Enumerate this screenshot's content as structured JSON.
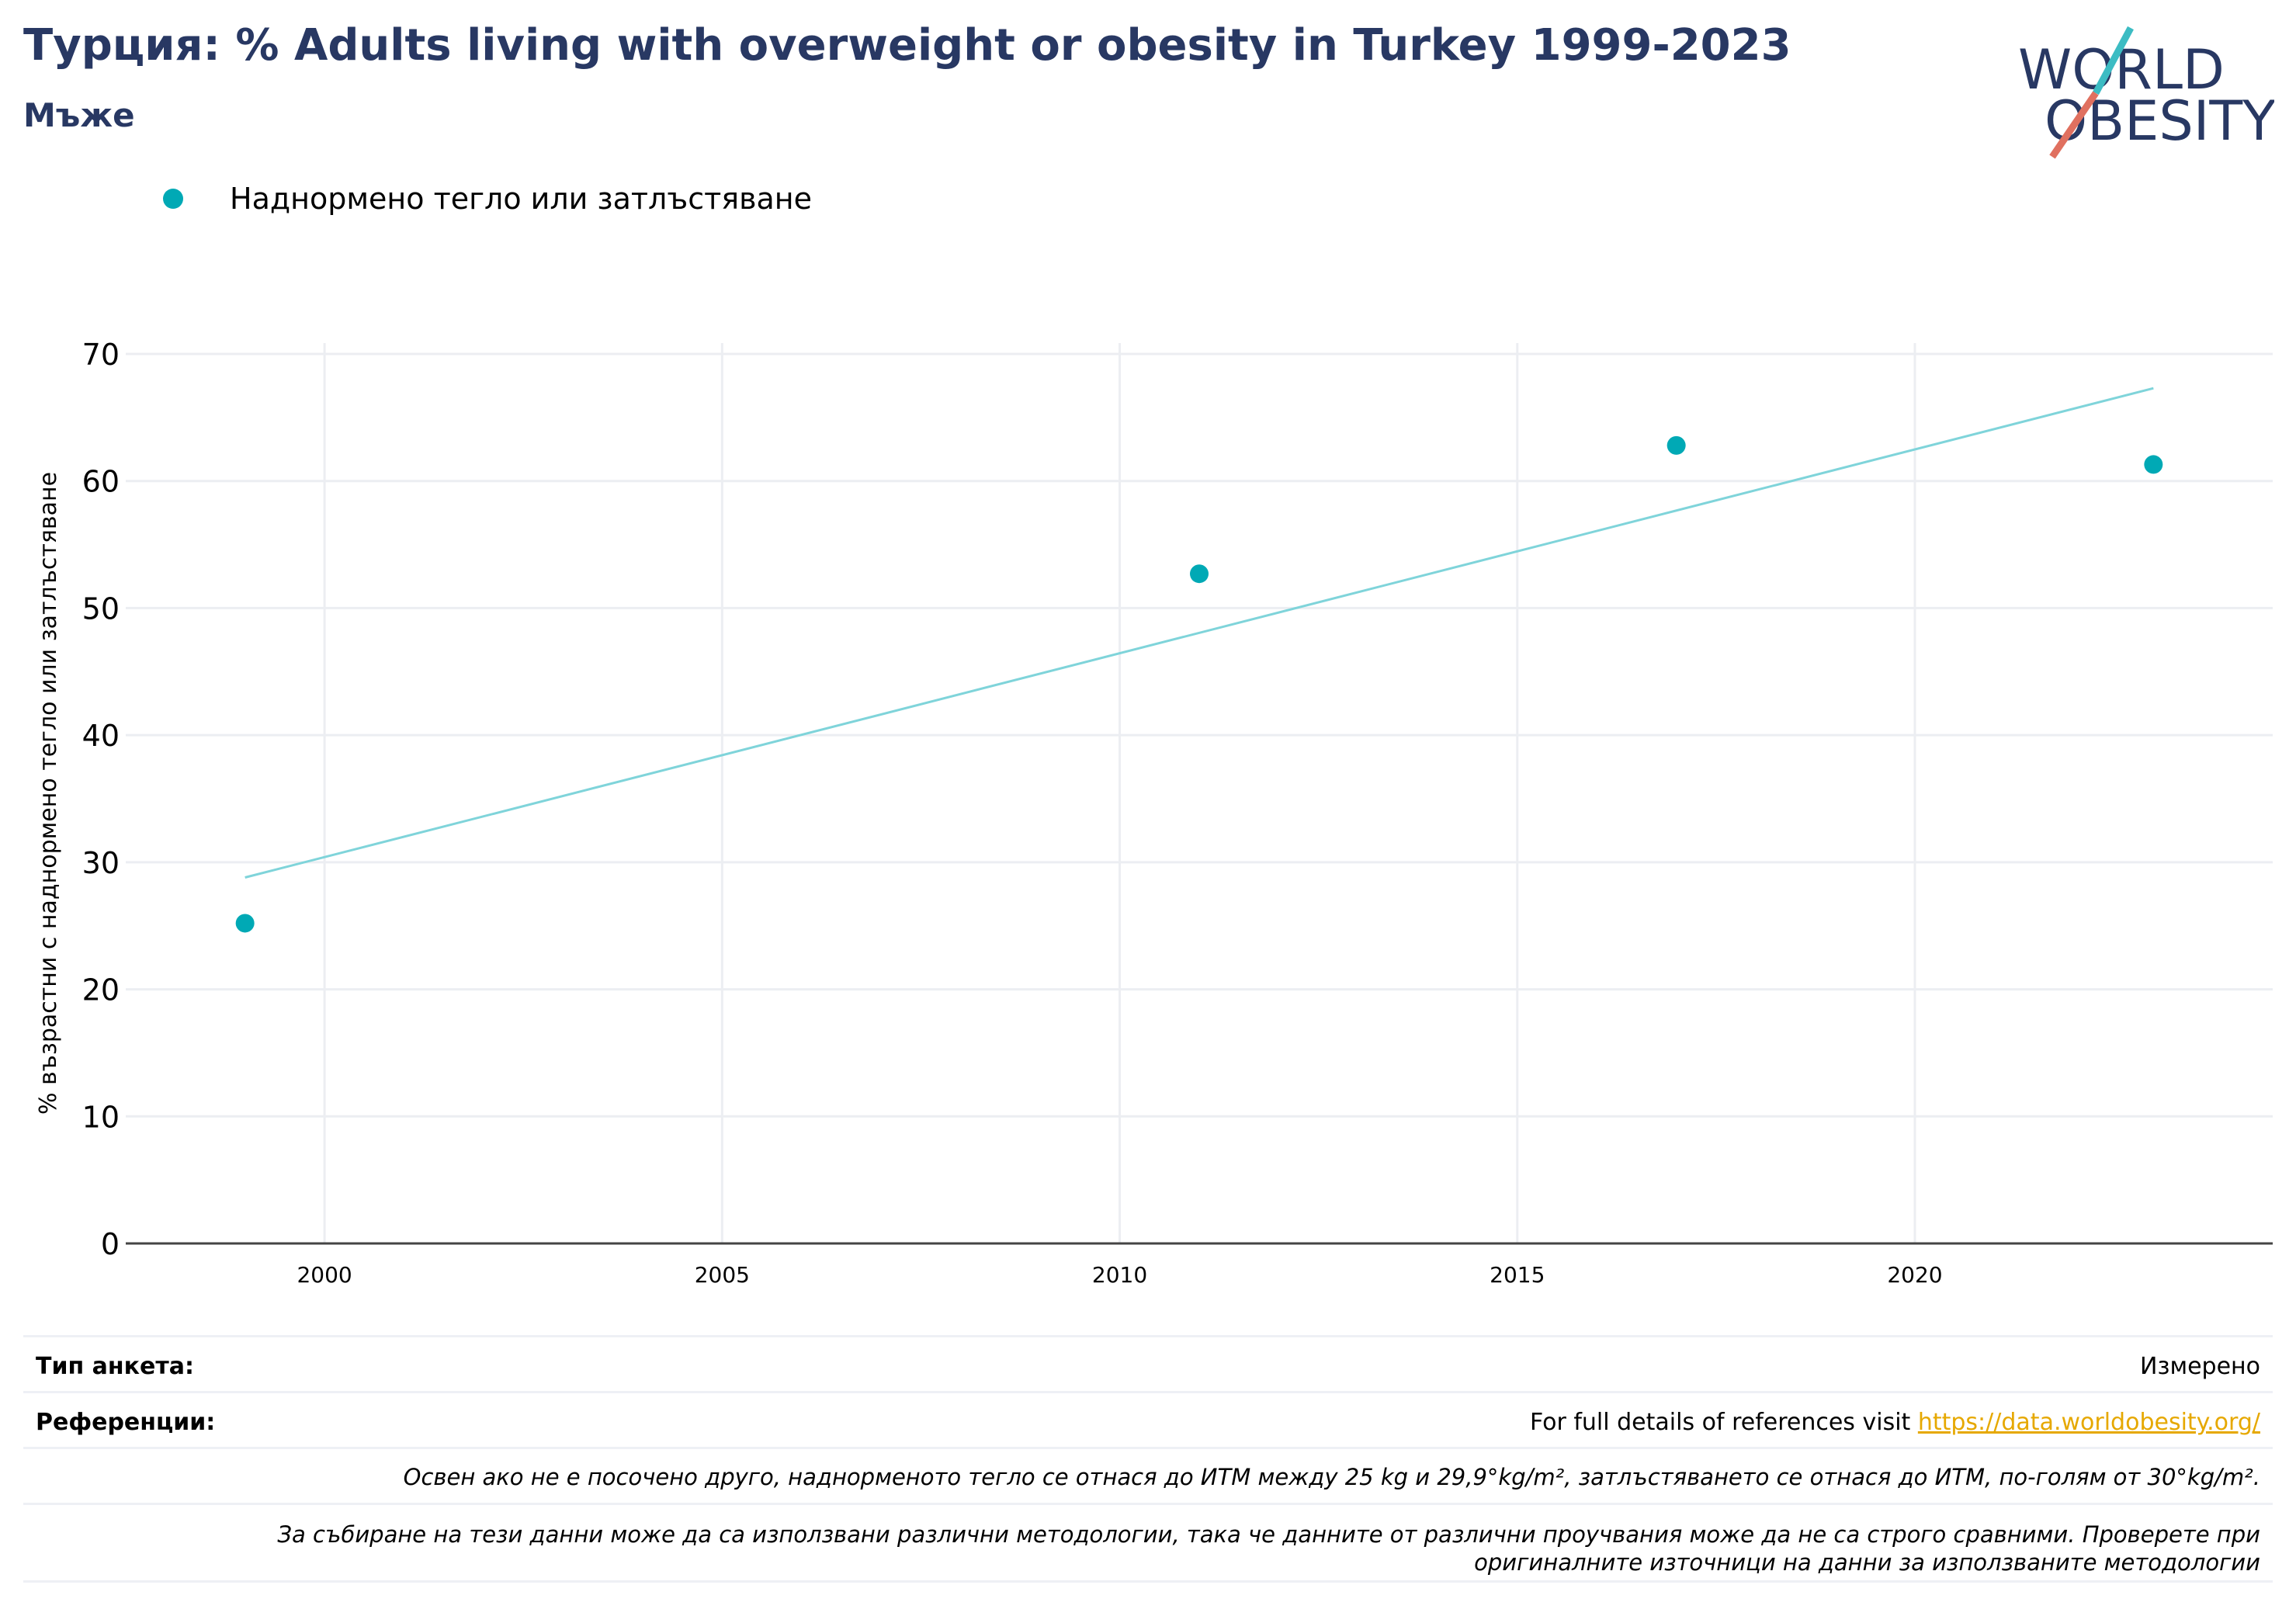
{
  "header": {
    "title": "Турция: % Adults living with overweight or obesity in Turkey 1999-2023",
    "subtitle": "Мъже"
  },
  "logo": {
    "line1": "WORLD",
    "line2": "OBESITY",
    "colors": {
      "text": "#283863",
      "slash_top": "#3cbcc3",
      "slash_bottom": "#e0705f"
    }
  },
  "colors": {
    "points": "#00a9b5",
    "trend": "#7fd4da",
    "grid": "#eceef2",
    "axis": "#444444",
    "title": "#283863",
    "link": "#e6a800"
  },
  "chart_data": {
    "type": "scatter",
    "title": "Турция: % Adults living with overweight or obesity in Turkey 1999-2023",
    "subtitle": "Мъже",
    "ylabel": "% възрастни с наднормено тегло или затлъстяване",
    "xlabel": "",
    "xlim": [
      1997.5,
      2024.5
    ],
    "ylim": [
      0,
      70
    ],
    "xticks": [
      2000,
      2005,
      2010,
      2015,
      2020
    ],
    "yticks": [
      0,
      10,
      20,
      30,
      40,
      50,
      60,
      70
    ],
    "grid": true,
    "legend_position": "top-left",
    "series": [
      {
        "name": "Наднормено тегло или затлъстяване",
        "x": [
          1999,
          2011,
          2017,
          2023
        ],
        "y": [
          25.2,
          52.7,
          62.8,
          61.3
        ]
      }
    ],
    "trendline": {
      "x": [
        1999,
        2023
      ],
      "y": [
        28.8,
        67.3
      ]
    }
  },
  "footer": {
    "survey_type_label": "Тип анкета:",
    "survey_type_value": "Измерено",
    "references_label": "Референции:",
    "references_text": "For full details of references visit ",
    "references_link": "https://data.worldobesity.org/",
    "note_bmi": "Освен ако не е посочено друго, наднорменото тегло се отнася до ИТМ между 25 kg и 29,9°kg/m², затлъстяването се отнася до ИТМ, по-голям от 30°kg/m².",
    "note_methods_line1": "За събиране на тези данни може да са използвани различни методологии, така че данните от различни проучвания може да не са строго сравними. Проверете при",
    "note_methods_line2": "оригиналните източници на данни за използваните методологии"
  }
}
